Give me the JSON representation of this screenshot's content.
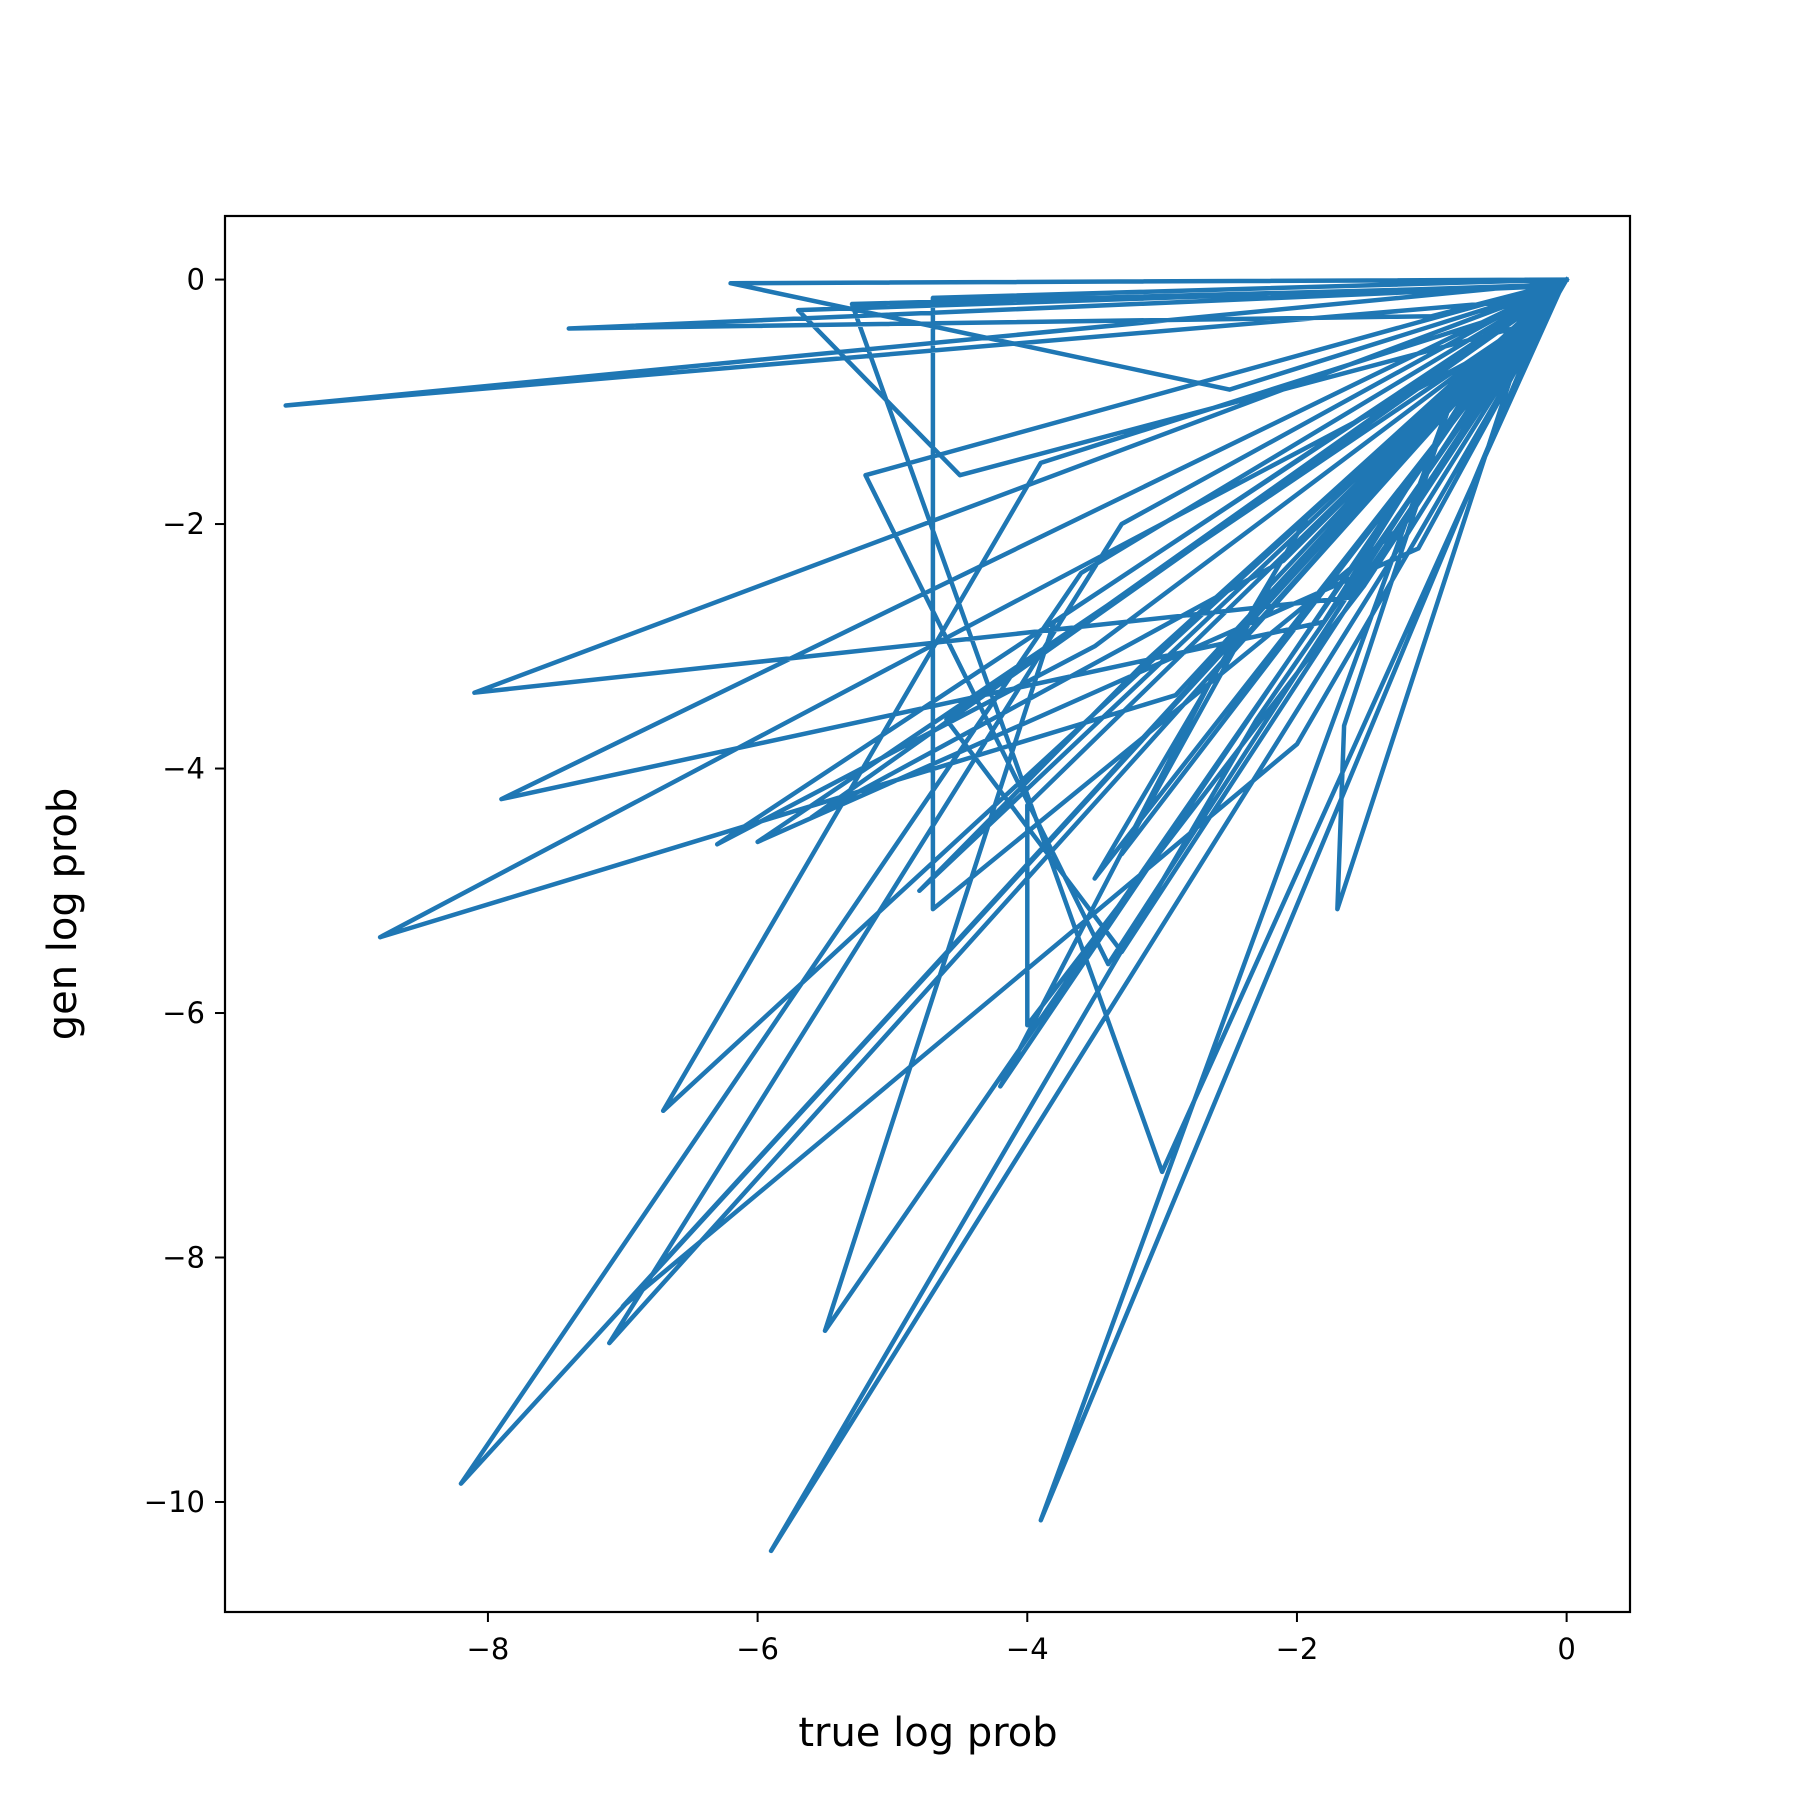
{
  "chart_data": {
    "type": "line",
    "title": "",
    "xlabel": "true log prob",
    "ylabel": "gen log prob",
    "xlim": [
      -9.95,
      0.47
    ],
    "ylim": [
      -10.9,
      0.52
    ],
    "xticks": [
      -8,
      -6,
      -4,
      -2,
      0
    ],
    "yticks": [
      0,
      -2,
      -4,
      -6,
      -8,
      -10
    ],
    "xtick_labels": [
      "−8",
      "−6",
      "−4",
      "−2",
      "0"
    ],
    "ytick_labels": [
      "0",
      "−2",
      "−4",
      "−6",
      "−8",
      "−10"
    ],
    "grid": false,
    "legend": false,
    "line_color": "#1f77b4",
    "series": [
      {
        "x": [
          0.0,
          -6.2,
          -2.5,
          -0.05,
          -7.4,
          -1.0,
          -0.02,
          -9.5,
          -0.1,
          -2.8,
          -0.05,
          -8.1,
          -1.6,
          -0.03,
          -7.1,
          -3.3,
          0.0,
          -5.9,
          -2.3,
          -0.1,
          -8.2,
          -3.6,
          -0.04,
          -5.7,
          -4.5,
          -0.4,
          -6.7,
          -3.9,
          -0.2,
          -7.0,
          -2.0,
          0.0,
          -4.7,
          -4.7,
          -1.2,
          -0.05,
          -5.3,
          -3.0,
          -0.02,
          -4.6,
          -3.3,
          -0.1,
          -6.3,
          -3.5,
          -0.6,
          -8.8,
          -2.9,
          -0.3,
          -5.5,
          -3.8,
          -0.05,
          -4.0,
          -4.0,
          -1.5,
          -0.02,
          -5.2,
          -3.4,
          -0.25,
          -1.7,
          -1.65,
          -0.8,
          -3.9,
          -1.2,
          -0.1,
          -3.3,
          -2.2,
          -0.4,
          -4.2,
          -2.6,
          -0.03,
          -7.9,
          -1.8,
          -0.5,
          -6.0,
          -1.1,
          -0.02,
          -4.8,
          -3.1,
          -0.15,
          -5.6,
          -2.1,
          -0.08,
          -3.5,
          -1.9,
          0.0
        ],
        "y": [
          0.0,
          -0.03,
          -0.9,
          -0.05,
          -0.4,
          -0.3,
          -0.02,
          -1.03,
          -0.15,
          -3.3,
          -0.05,
          -3.38,
          -2.6,
          -0.03,
          -8.7,
          -2.0,
          0.0,
          -10.4,
          -3.6,
          -0.1,
          -9.85,
          -2.4,
          -0.04,
          -0.25,
          -1.6,
          -0.4,
          -6.8,
          -1.5,
          -0.2,
          -8.4,
          -3.8,
          0.0,
          -0.15,
          -5.15,
          -2.0,
          -0.05,
          -0.2,
          -7.3,
          -0.02,
          -3.6,
          -5.5,
          -0.1,
          -4.62,
          -3.0,
          -0.6,
          -5.38,
          -3.4,
          -0.3,
          -8.6,
          -2.8,
          -0.05,
          -4.3,
          -6.1,
          -2.5,
          -0.02,
          -1.6,
          -5.6,
          -0.25,
          -5.15,
          -3.65,
          -0.8,
          -10.15,
          -3.0,
          -0.1,
          -4.7,
          -2.5,
          -0.4,
          -6.6,
          -3.2,
          -0.03,
          -4.25,
          -2.8,
          -0.5,
          -4.6,
          -2.2,
          -0.02,
          -5.0,
          -3.1,
          -0.15,
          -4.4,
          -2.3,
          -0.08,
          -4.9,
          -1.9,
          0.0
        ]
      }
    ]
  }
}
